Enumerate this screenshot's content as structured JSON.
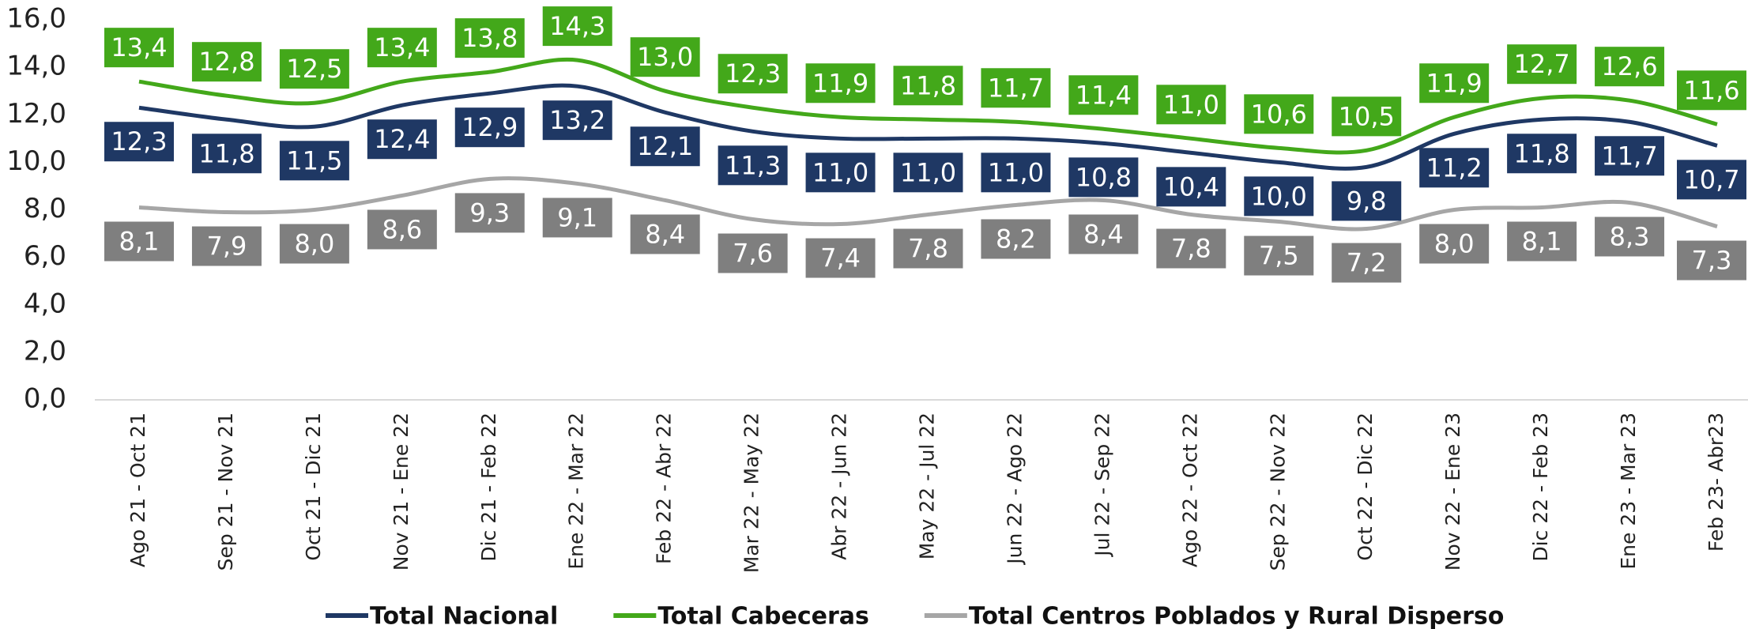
{
  "chart_data": {
    "type": "line",
    "categories": [
      "Ago 21 - Oct 21",
      "Sep 21 - Nov 21",
      "Oct 21 - Dic 21",
      "Nov 21 - Ene 22",
      "Dic 21 - Feb 22",
      "Ene 22 - Mar 22",
      "Feb 22 - Abr 22",
      "Mar 22 - May 22",
      "Abr 22 - Jun 22",
      "May 22 - Jul 22",
      "Jun 22 - Ago 22",
      "Jul 22 - Sep 22",
      "Ago 22 - Oct 22",
      "Sep 22 - Nov 22",
      "Oct 22 - Dic 22",
      "Nov 22 - Ene 23",
      "Dic 22 - Feb 23",
      "Ene 23 - Mar 23",
      "Feb 23- Abr23"
    ],
    "series": [
      {
        "name": "Total Nacional",
        "color": "#1f3864",
        "values": [
          12.3,
          11.8,
          11.5,
          12.4,
          12.9,
          13.2,
          12.1,
          11.3,
          11.0,
          11.0,
          11.0,
          10.8,
          10.4,
          10.0,
          9.8,
          11.2,
          11.8,
          11.7,
          10.7
        ],
        "value_labels": [
          "12,3",
          "11,8",
          "11,5",
          "12,4",
          "12,9",
          "13,2",
          "12,1",
          "11,3",
          "11,0",
          "11,0",
          "11,0",
          "10,8",
          "10,4",
          "10,0",
          "9,8",
          "11,2",
          "11,8",
          "11,7",
          "10,7"
        ]
      },
      {
        "name": "Total Cabeceras",
        "color": "#43a81a",
        "values": [
          13.4,
          12.8,
          12.5,
          13.4,
          13.8,
          14.3,
          13.0,
          12.3,
          11.9,
          11.8,
          11.7,
          11.4,
          11.0,
          10.6,
          10.5,
          11.9,
          12.7,
          12.6,
          11.6
        ],
        "value_labels": [
          "13,4",
          "12,8",
          "12,5",
          "13,4",
          "13,8",
          "14,3",
          "13,0",
          "12,3",
          "11,9",
          "11,8",
          "11,7",
          "11,4",
          "11,0",
          "10,6",
          "10,5",
          "11,9",
          "12,7",
          "12,6",
          "11,6"
        ]
      },
      {
        "name": "Total Centros Poblados y Rural Disperso",
        "color": "#a6a6a6",
        "values": [
          8.1,
          7.9,
          8.0,
          8.6,
          9.3,
          9.1,
          8.4,
          7.6,
          7.4,
          7.8,
          8.2,
          8.4,
          7.8,
          7.5,
          7.2,
          8.0,
          8.1,
          8.3,
          7.3
        ],
        "value_labels": [
          "8,1",
          "7,9",
          "8,0",
          "8,6",
          "9,3",
          "9,1",
          "8,4",
          "7,6",
          "7,4",
          "7,8",
          "8,2",
          "8,4",
          "7,8",
          "7,5",
          "7,2",
          "8,0",
          "8,1",
          "8,3",
          "7,3"
        ]
      }
    ],
    "ylim": [
      0,
      16
    ],
    "yticks": [
      {
        "value": 0,
        "label": "0,0"
      },
      {
        "value": 2,
        "label": "2,0"
      },
      {
        "value": 4,
        "label": "4,0"
      },
      {
        "value": 6,
        "label": "6,0"
      },
      {
        "value": 8,
        "label": "8,0"
      },
      {
        "value": 10,
        "label": "10,0"
      },
      {
        "value": 12,
        "label": "12,0"
      },
      {
        "value": 14,
        "label": "14,0"
      },
      {
        "value": 16,
        "label": "16,0"
      }
    ],
    "legend": "bottom"
  }
}
